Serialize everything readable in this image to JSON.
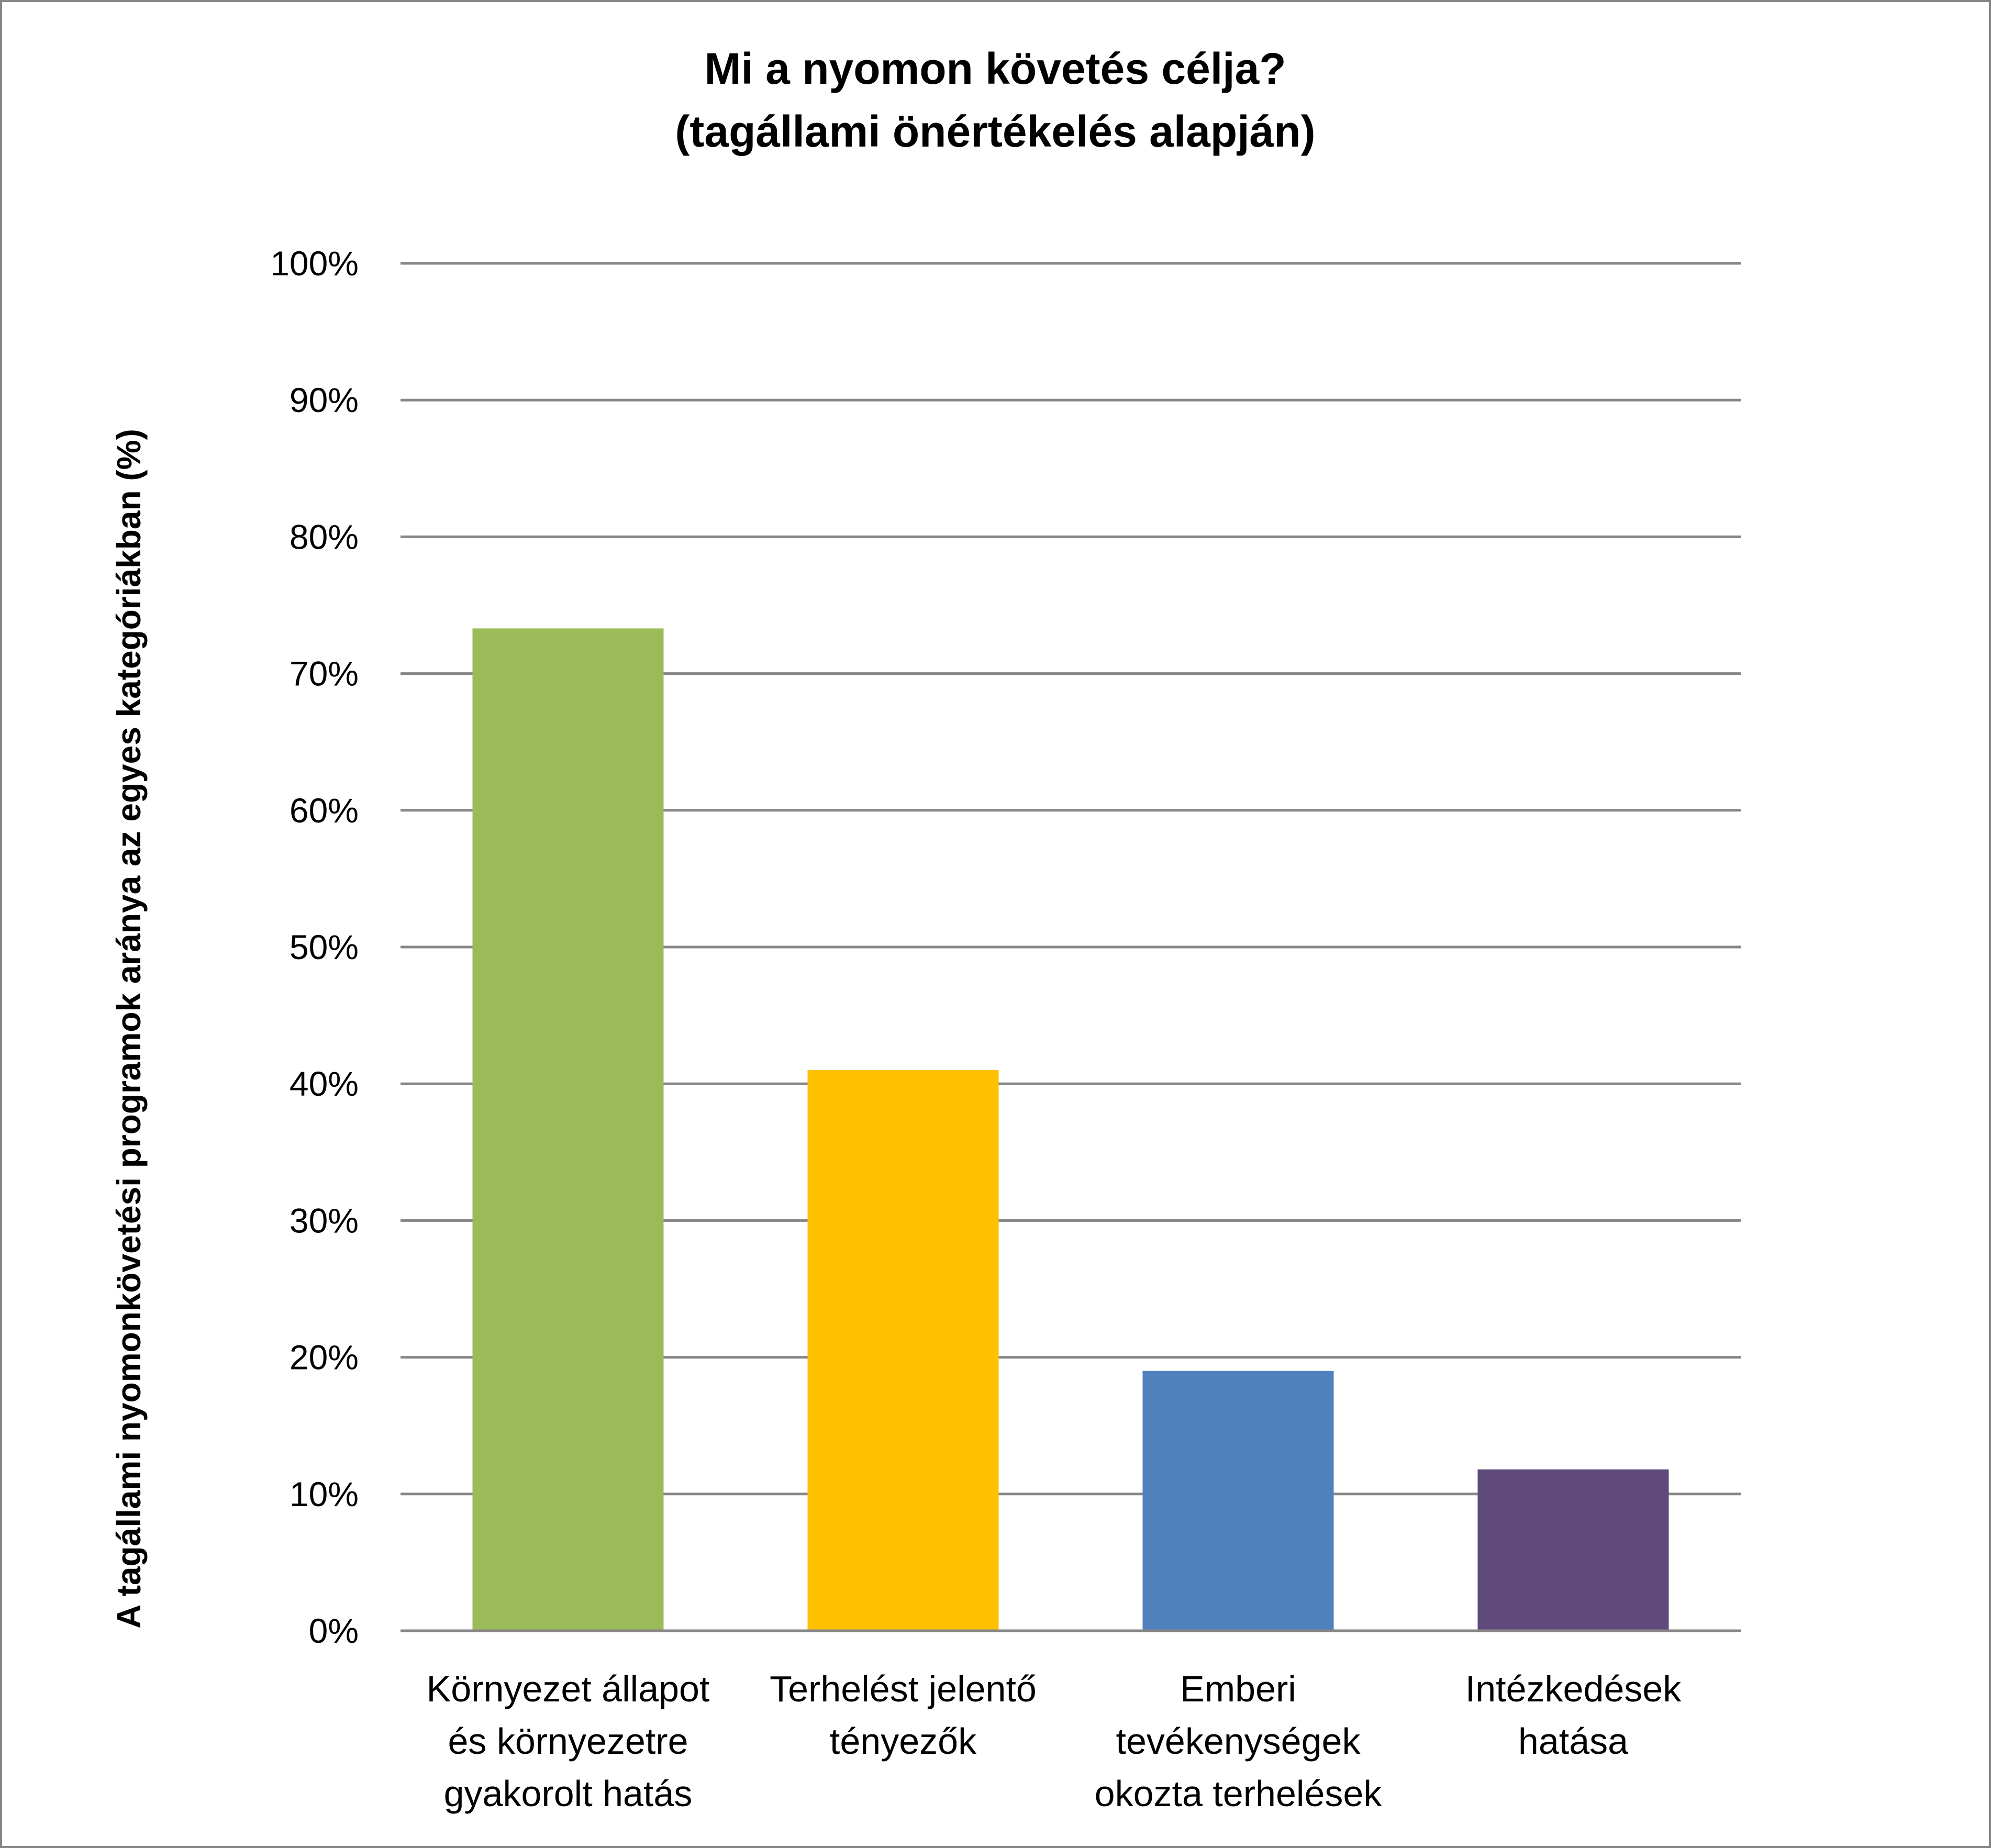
{
  "chart_data": {
    "type": "bar",
    "title": [
      "Mi a nyomon követés célja?",
      "(tagállami önértékelés alapján)"
    ],
    "ylabel": "A tagállami nyomonkövetési programok aránya az egyes kategóriákban (%)",
    "xlabel": "",
    "ylim": [
      0,
      100
    ],
    "yticks": [
      0,
      10,
      20,
      30,
      40,
      50,
      60,
      70,
      80,
      90,
      100
    ],
    "ytick_labels": [
      "0%",
      "10%",
      "20%",
      "30%",
      "40%",
      "50%",
      "60%",
      "70%",
      "80%",
      "90%",
      "100%"
    ],
    "grid": true,
    "legend": "none",
    "categories": [
      [
        "Környezet állapot",
        "és környezetre",
        "gyakorolt hatás"
      ],
      [
        "Terhelést jelentő",
        "tényezők"
      ],
      [
        "Emberi",
        "tevékenységek",
        "okozta terhelések"
      ],
      [
        "Intézkedések",
        "hatása"
      ]
    ],
    "values": [
      73.3,
      41,
      19,
      11.8
    ],
    "colors": [
      "#9BBB59",
      "#FFC000",
      "#4F81BD",
      "#604A7B"
    ]
  }
}
